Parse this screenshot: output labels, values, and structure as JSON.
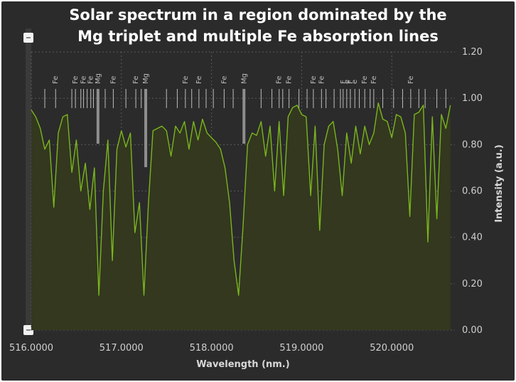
{
  "chart_data": {
    "type": "area",
    "title_lines": [
      "Solar spectrum in a region dominated by the",
      "Mg triplet and multiple Fe absorption lines"
    ],
    "xlabel": "Wavelength (nm.)",
    "ylabel": "Intensity (a.u.)",
    "xlim": [
      516.0,
      520.7
    ],
    "ylim": [
      0.0,
      1.2
    ],
    "x_ticks": [
      "516.0000",
      "517.0000",
      "518.0000",
      "519.0000",
      "520.0000"
    ],
    "x_tick_values": [
      516.0,
      517.0,
      518.0,
      519.0,
      520.0
    ],
    "y_ticks": [
      "0.00",
      "0.20",
      "0.40",
      "0.60",
      "0.80",
      "1.00",
      "1.20"
    ],
    "y_tick_values": [
      0.0,
      0.2,
      0.4,
      0.6,
      0.8,
      1.0,
      1.2
    ],
    "grid": true,
    "colors": {
      "background": "#2b2b2b",
      "spectrum_line": "#7ab51d",
      "spectrum_fill": "#33381f",
      "grid": "#5a5a5a",
      "line_marker": "#bdbdbd",
      "mg_marker": "#8e8e8e"
    },
    "series": [
      {
        "x": [
          516.0,
          516.05,
          516.1,
          516.15,
          516.2,
          516.25,
          516.3,
          516.35,
          516.4,
          516.45,
          516.5,
          516.55,
          516.6,
          516.65,
          516.7,
          516.75,
          516.8,
          516.85,
          516.9,
          516.95,
          517.0,
          517.05,
          517.1,
          517.15,
          517.2,
          517.25,
          517.3,
          517.35,
          517.4,
          517.45,
          517.5,
          517.55,
          517.6,
          517.65,
          517.7,
          517.75,
          517.8,
          517.85,
          517.9,
          517.95,
          518.0,
          518.05,
          518.1,
          518.15,
          518.2,
          518.25,
          518.3,
          518.35,
          518.4,
          518.45,
          518.5,
          518.55,
          518.6,
          518.65,
          518.7,
          518.75,
          518.8,
          518.85,
          518.9,
          518.95,
          519.0,
          519.05,
          519.1,
          519.15,
          519.2,
          519.25,
          519.3,
          519.35,
          519.4,
          519.45,
          519.5,
          519.55,
          519.6,
          519.65,
          519.7,
          519.75,
          519.8,
          519.85,
          519.9,
          519.95,
          520.0,
          520.05,
          520.1,
          520.15,
          520.2,
          520.25,
          520.3,
          520.35,
          520.4,
          520.45,
          520.5,
          520.55,
          520.6,
          520.65
        ],
        "values": [
          0.95,
          0.92,
          0.87,
          0.78,
          0.82,
          0.53,
          0.85,
          0.92,
          0.93,
          0.68,
          0.82,
          0.6,
          0.72,
          0.52,
          0.7,
          0.15,
          0.6,
          0.82,
          0.3,
          0.78,
          0.86,
          0.79,
          0.85,
          0.42,
          0.55,
          0.15,
          0.55,
          0.86,
          0.87,
          0.88,
          0.86,
          0.75,
          0.88,
          0.85,
          0.9,
          0.78,
          0.9,
          0.82,
          0.91,
          0.85,
          0.83,
          0.81,
          0.78,
          0.7,
          0.55,
          0.3,
          0.15,
          0.45,
          0.8,
          0.85,
          0.84,
          0.9,
          0.75,
          0.88,
          0.6,
          0.9,
          0.58,
          0.92,
          0.96,
          0.97,
          0.93,
          0.92,
          0.58,
          0.88,
          0.43,
          0.8,
          0.88,
          0.9,
          0.78,
          0.58,
          0.85,
          0.72,
          0.88,
          0.76,
          0.88,
          0.8,
          0.85,
          0.98,
          0.91,
          0.9,
          0.83,
          0.93,
          0.92,
          0.85,
          0.49,
          0.93,
          0.94,
          0.97,
          0.38,
          0.92,
          0.48,
          0.93,
          0.87,
          0.97
        ]
      }
    ],
    "line_markers": [
      {
        "x": 516.27,
        "label": "Fe"
      },
      {
        "x": 516.49,
        "label": "Fe"
      },
      {
        "x": 516.58,
        "label": "Fe"
      },
      {
        "x": 516.66,
        "label": "Fe"
      },
      {
        "x": 516.74,
        "label": "Mg",
        "strong": true
      },
      {
        "x": 516.91,
        "label": "Fe"
      },
      {
        "x": 517.16,
        "label": "Fe"
      },
      {
        "x": 517.27,
        "label": "Mg",
        "strong": true
      },
      {
        "x": 517.71,
        "label": "Fe"
      },
      {
        "x": 517.86,
        "label": "Fe"
      },
      {
        "x": 518.14,
        "label": "Fe"
      },
      {
        "x": 518.36,
        "label": "Mg",
        "strong": true
      },
      {
        "x": 518.75,
        "label": "Fe"
      },
      {
        "x": 518.86,
        "label": "Fe"
      },
      {
        "x": 519.13,
        "label": "Fe"
      },
      {
        "x": 519.22,
        "label": "Fe"
      },
      {
        "x": 519.46,
        "label": "F"
      },
      {
        "x": 519.5,
        "label": "e"
      },
      {
        "x": 519.54,
        "label": "F"
      },
      {
        "x": 519.59,
        "label": "e"
      },
      {
        "x": 519.7,
        "label": "Fe"
      },
      {
        "x": 519.8,
        "label": "Fe"
      },
      {
        "x": 520.21,
        "label": "Fe"
      }
    ],
    "extra_ticks": [
      516.15,
      516.45,
      516.55,
      516.62,
      516.69,
      516.82,
      517.05,
      517.22,
      517.5,
      517.62,
      517.78,
      517.94,
      518.02,
      518.24,
      518.55,
      518.67,
      518.79,
      518.97,
      519.06,
      519.27,
      519.36,
      519.43,
      519.64,
      519.76,
      519.9,
      520.02,
      520.12,
      520.3,
      520.37,
      520.5,
      520.6
    ]
  }
}
